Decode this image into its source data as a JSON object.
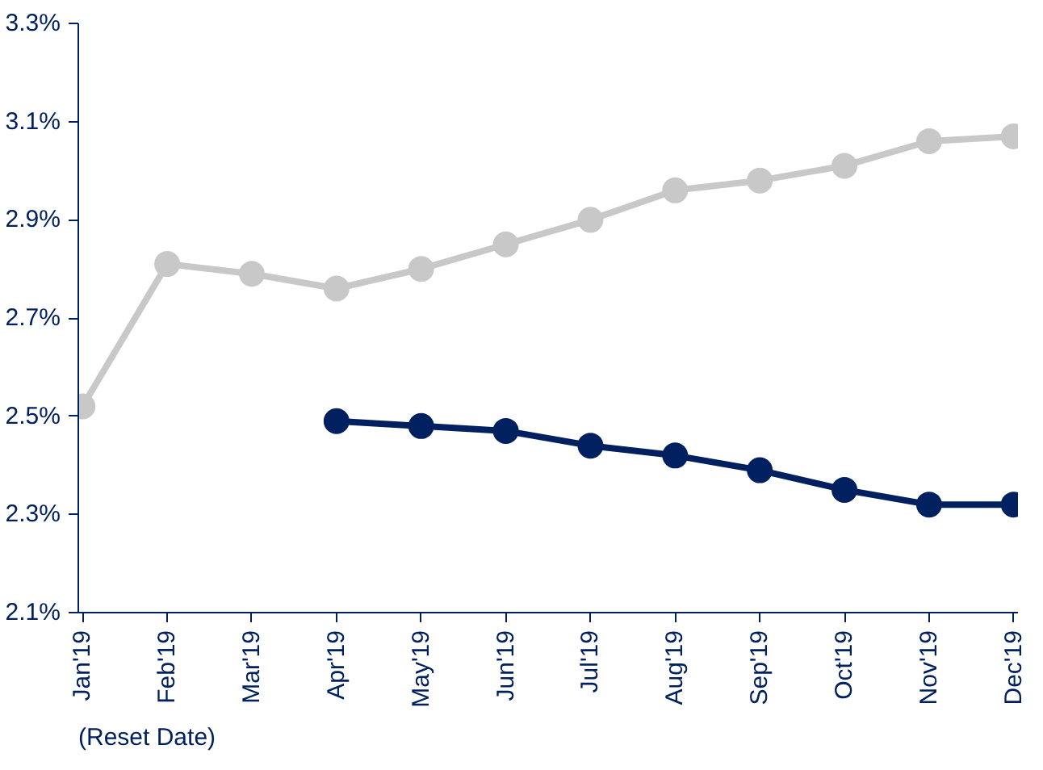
{
  "chart_data": {
    "type": "line",
    "categories": [
      "Jan'19",
      "Feb'19",
      "Mar'19",
      "Apr'19",
      "May'19",
      "Jun'19",
      "Jul'19",
      "Aug'19",
      "Sep'19",
      "Oct'19",
      "Nov'19",
      "Dec'19"
    ],
    "series": [
      {
        "color": "#c8c8c8",
        "values": [
          2.52,
          2.81,
          2.79,
          2.76,
          2.8,
          2.85,
          2.9,
          2.96,
          2.98,
          3.01,
          3.06,
          3.07
        ]
      },
      {
        "color": "#002060",
        "values": [
          null,
          null,
          null,
          2.49,
          2.48,
          2.47,
          2.44,
          2.42,
          2.39,
          2.35,
          2.32,
          2.32
        ]
      }
    ],
    "ylim": [
      2.1,
      3.3
    ],
    "yticks": [
      {
        "value": 2.1,
        "label": "2.1%"
      },
      {
        "value": 2.3,
        "label": "2.3%"
      },
      {
        "value": 2.5,
        "label": "2.5%"
      },
      {
        "value": 2.7,
        "label": "2.7%"
      },
      {
        "value": 2.9,
        "label": "2.9%"
      },
      {
        "value": 3.1,
        "label": "3.1%"
      },
      {
        "value": 3.3,
        "label": "3.3%"
      }
    ],
    "annotations": [
      "(Reset Date)"
    ],
    "grid": false,
    "marker": "circle",
    "line_style": "solid"
  }
}
